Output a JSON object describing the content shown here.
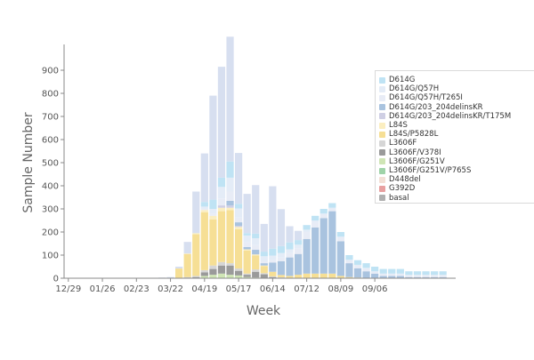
{
  "chart_data": {
    "type": "bar",
    "stacked": true,
    "xlabel": "Week",
    "ylabel": "Sample Number",
    "ylim": [
      0,
      1000
    ],
    "yticks": [
      0,
      100,
      200,
      300,
      400,
      500,
      600,
      700,
      800,
      900
    ],
    "xtick_labels": [
      "12/29",
      "01/26",
      "02/23",
      "03/22",
      "04/19",
      "05/17",
      "06/14",
      "07/12",
      "08/09",
      "09/06"
    ],
    "grid": false,
    "legend_position": "top-right",
    "series": [
      {
        "name": "basal",
        "color": "#b0b0b0",
        "values": [
          0,
          0,
          0,
          0,
          0,
          0,
          0,
          0,
          0,
          0,
          0,
          0,
          0,
          0,
          0,
          0,
          0,
          0,
          0,
          0,
          0,
          0,
          0,
          0,
          0,
          0,
          0,
          0,
          0,
          0,
          0,
          0,
          0,
          0,
          0,
          0,
          0,
          0,
          0,
          0,
          0,
          0,
          0,
          0,
          0,
          0
        ]
      },
      {
        "name": "G392D",
        "color": "#e8a0a0",
        "values": [
          0,
          0,
          0,
          0,
          0,
          0,
          0,
          0,
          0,
          0,
          0,
          0,
          0,
          0,
          0,
          0,
          0,
          0,
          0,
          0,
          0,
          0,
          0,
          0,
          0,
          0,
          0,
          0,
          0,
          0,
          0,
          0,
          0,
          0,
          0,
          0,
          0,
          0,
          0,
          0,
          0,
          0,
          0,
          0,
          0,
          0
        ]
      },
      {
        "name": "D448del",
        "color": "#f3e0d6",
        "values": [
          0,
          0,
          0,
          0,
          0,
          0,
          0,
          0,
          0,
          0,
          0,
          0,
          0,
          0,
          0,
          0,
          0,
          0,
          0,
          0,
          0,
          0,
          0,
          0,
          0,
          0,
          0,
          0,
          0,
          0,
          0,
          0,
          0,
          0,
          0,
          0,
          0,
          0,
          0,
          0,
          0,
          0,
          0,
          0,
          0,
          0
        ]
      },
      {
        "name": "L3606F/G251V/P765S",
        "color": "#9fd3a8",
        "values": [
          0,
          0,
          0,
          0,
          0,
          0,
          0,
          0,
          0,
          0,
          0,
          0,
          0,
          0,
          0,
          0,
          0,
          0,
          0,
          0,
          0,
          0,
          0,
          0,
          0,
          0,
          0,
          0,
          0,
          0,
          0,
          0,
          0,
          0,
          0,
          0,
          0,
          0,
          0,
          0,
          0,
          0,
          0,
          0,
          0,
          0
        ]
      },
      {
        "name": "L3606F/G251V",
        "color": "#cfe5b5",
        "values": [
          0,
          0,
          0,
          0,
          0,
          0,
          0,
          0,
          0,
          0,
          0,
          0,
          0,
          0,
          0,
          0,
          10,
          15,
          20,
          15,
          12,
          5,
          3,
          2,
          0,
          0,
          0,
          0,
          0,
          0,
          0,
          0,
          0,
          0,
          0,
          0,
          0,
          0,
          0,
          0,
          0,
          0,
          0,
          0,
          0,
          0
        ]
      },
      {
        "name": "L3606F/V378I",
        "color": "#9a9a9a",
        "values": [
          0,
          0,
          0,
          0,
          0,
          0,
          0,
          0,
          0,
          0,
          0,
          0,
          0,
          2,
          3,
          5,
          15,
          25,
          35,
          40,
          20,
          10,
          25,
          15,
          5,
          2,
          0,
          0,
          0,
          0,
          0,
          0,
          0,
          0,
          0,
          0,
          0,
          0,
          0,
          0,
          0,
          0,
          0,
          0,
          0,
          0
        ]
      },
      {
        "name": "L3606F",
        "color": "#d6d6d6",
        "values": [
          0,
          0,
          0,
          0,
          0,
          0,
          0,
          0,
          0,
          0,
          0,
          0,
          0,
          0,
          2,
          5,
          10,
          15,
          15,
          10,
          10,
          5,
          10,
          5,
          3,
          2,
          0,
          0,
          0,
          0,
          0,
          0,
          0,
          0,
          0,
          0,
          0,
          0,
          0,
          0,
          0,
          0,
          0,
          0,
          0,
          0
        ]
      },
      {
        "name": "L84S/P5828L",
        "color": "#f6df95",
        "values": [
          0,
          0,
          0,
          0,
          0,
          0,
          0,
          0,
          0,
          0,
          0,
          0,
          0,
          40,
          100,
          180,
          250,
          200,
          220,
          230,
          170,
          100,
          60,
          30,
          20,
          10,
          10,
          15,
          20,
          20,
          20,
          20,
          10,
          5,
          3,
          0,
          0,
          0,
          0,
          0,
          0,
          0,
          0,
          0,
          0,
          0
        ]
      },
      {
        "name": "L84S",
        "color": "#fbeec0",
        "values": [
          0,
          0,
          0,
          0,
          0,
          0,
          0,
          0,
          0,
          0,
          0,
          0,
          0,
          0,
          2,
          5,
          10,
          15,
          15,
          10,
          10,
          5,
          5,
          3,
          0,
          0,
          0,
          0,
          0,
          0,
          0,
          0,
          0,
          0,
          0,
          0,
          0,
          0,
          0,
          0,
          0,
          0,
          0,
          0,
          0,
          0
        ]
      },
      {
        "name": "D614G/203_204delinsKR/T175M",
        "color": "#cfcfe4",
        "values": [
          0,
          0,
          0,
          0,
          0,
          0,
          0,
          0,
          0,
          0,
          0,
          0,
          0,
          0,
          0,
          0,
          0,
          0,
          10,
          10,
          5,
          0,
          0,
          0,
          0,
          0,
          0,
          0,
          0,
          0,
          0,
          0,
          0,
          0,
          0,
          0,
          0,
          0,
          0,
          0,
          0,
          0,
          0,
          0,
          0,
          0
        ]
      },
      {
        "name": "D614G/203_204delinsKR",
        "color": "#a9c3df",
        "values": [
          0,
          0,
          0,
          0,
          0,
          0,
          0,
          0,
          0,
          0,
          0,
          0,
          0,
          0,
          0,
          0,
          0,
          0,
          0,
          20,
          15,
          10,
          20,
          10,
          40,
          60,
          80,
          90,
          150,
          200,
          240,
          270,
          150,
          60,
          40,
          30,
          20,
          10,
          10,
          10,
          5,
          5,
          5,
          5,
          5,
          0
        ]
      },
      {
        "name": "D614G/Q57H/T265I",
        "color": "#e8ecf6",
        "values": [
          0,
          0,
          0,
          0,
          0,
          0,
          0,
          0,
          0,
          0,
          0,
          0,
          0,
          0,
          0,
          0,
          5,
          10,
          30,
          40,
          20,
          20,
          20,
          10,
          10,
          15,
          20,
          25,
          30,
          20,
          15,
          10,
          15,
          10,
          10,
          10,
          5,
          5,
          5,
          5,
          5,
          5,
          5,
          5,
          5,
          0
        ]
      },
      {
        "name": "D614G/Q57H",
        "color": "#e4ecf7",
        "values": [
          0,
          0,
          0,
          0,
          0,
          0,
          0,
          0,
          0,
          0,
          0,
          0,
          0,
          0,
          0,
          0,
          10,
          20,
          50,
          60,
          40,
          30,
          30,
          20,
          20,
          20,
          15,
          15,
          10,
          10,
          5,
          5,
          5,
          5,
          5,
          5,
          5,
          5,
          5,
          5,
          5,
          5,
          5,
          5,
          5,
          0
        ]
      },
      {
        "name": "D614G",
        "color": "#bfe3f4",
        "values": [
          0,
          0,
          0,
          0,
          0,
          0,
          0,
          0,
          0,
          0,
          0,
          0,
          0,
          0,
          0,
          0,
          20,
          40,
          40,
          70,
          20,
          10,
          20,
          20,
          30,
          30,
          30,
          20,
          20,
          20,
          20,
          20,
          20,
          20,
          20,
          20,
          20,
          20,
          20,
          20,
          15,
          15,
          15,
          15,
          15,
          0
        ]
      },
      {
        "name": "",
        "color": "#d7dff0",
        "values": [
          0,
          0,
          0,
          0,
          0,
          0,
          0,
          0,
          0,
          0,
          2,
          3,
          5,
          8,
          50,
          180,
          210,
          450,
          480,
          540,
          220,
          170,
          210,
          120,
          270,
          160,
          70,
          40,
          0,
          0,
          0,
          0,
          0,
          0,
          0,
          0,
          0,
          0,
          0,
          0,
          0,
          0,
          0,
          0,
          0,
          0
        ]
      }
    ],
    "totals_target": [
      0,
      0,
      0,
      0,
      0,
      0,
      0,
      0,
      0,
      0,
      2,
      3,
      5,
      50,
      160,
      370,
      560,
      740,
      930,
      940,
      480,
      420,
      400,
      270,
      610,
      370,
      260,
      320,
      300,
      380,
      360,
      360,
      260,
      140,
      110,
      80,
      60,
      50,
      50,
      40,
      30,
      30,
      30,
      30,
      30,
      0
    ],
    "legend": [
      "D614G",
      "D614G/Q57H",
      "D614G/Q57H/T265I",
      "D614G/203_204delinsKR",
      "D614G/203_204delinsKR/T175M",
      "L84S",
      "L84S/P5828L",
      "L3606F",
      "L3606F/V378I",
      "L3606F/G251V",
      "L3606F/G251V/P765S",
      "D448del",
      "G392D",
      "basal"
    ]
  }
}
